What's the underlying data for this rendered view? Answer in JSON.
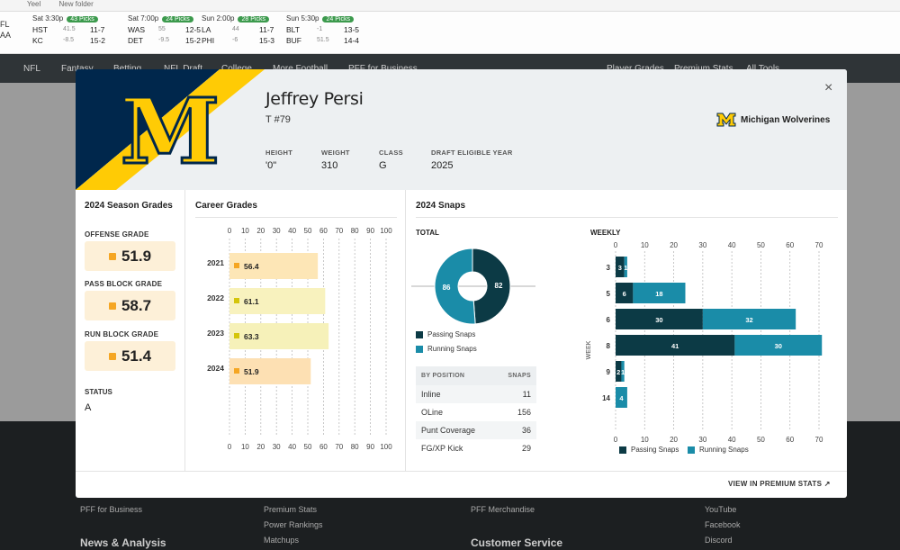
{
  "browser": {
    "tab1": "Yeel",
    "tab2": "New folder"
  },
  "scores": {
    "left_top": "FL",
    "left_bottom": "AA",
    "games": [
      {
        "time": "Sat 3:30p",
        "picks": "43 Picks",
        "r1": {
          "team": "HST",
          "spread": "41.5",
          "rec": "11-7"
        },
        "r2": {
          "team": "KC",
          "spread": "-8.5",
          "rec": "15-2"
        }
      },
      {
        "time": "Sat 7:00p",
        "picks": "24 Picks",
        "r1": {
          "team": "WAS",
          "spread": "55",
          "rec": "12-5"
        },
        "r2": {
          "team": "DET",
          "spread": "-9.5",
          "rec": "15-2"
        }
      },
      {
        "time": "Sun 2:00p",
        "picks": "28 Picks",
        "r1": {
          "team": "LA",
          "spread": "44",
          "rec": "11-7"
        },
        "r2": {
          "team": "PHI",
          "spread": "-6",
          "rec": "15-3"
        }
      },
      {
        "time": "Sun 5:30p",
        "picks": "24 Picks",
        "r1": {
          "team": "BLT",
          "spread": "-1",
          "rec": "13-5"
        },
        "r2": {
          "team": "BUF",
          "spread": "51.5",
          "rec": "14-4"
        }
      }
    ]
  },
  "nav": {
    "items": [
      "NFL",
      "Fantasy",
      "Betting",
      "NFL Draft",
      "College",
      "More Football",
      "PFF for Business"
    ],
    "right_items": [
      "Player Grades",
      "Premium Stats",
      "All Tools"
    ]
  },
  "footer": {
    "links_col1": [
      "PFF for Business"
    ],
    "links_col2": [
      "Premium Stats",
      "Power Rankings",
      "Matchups"
    ],
    "links_col3": [
      "PFF Merchandise"
    ],
    "links_col4": [
      "YouTube",
      "Facebook",
      "Discord"
    ],
    "head1": "News & Analysis",
    "head3": "Customer Service"
  },
  "player": {
    "logo_letter": "M",
    "name": "Jeffrey Persi",
    "position": "T #79",
    "height_label": "HEIGHT",
    "height": "'0\"",
    "weight_label": "WEIGHT",
    "weight": "310",
    "class_label": "CLASS",
    "class": "G",
    "draft_label": "DRAFT ELIGIBLE YEAR",
    "draft": "2025",
    "team": "Michigan Wolverines",
    "close": "×"
  },
  "season": {
    "title": "2024 Season Grades",
    "grades": [
      {
        "label": "OFFENSE GRADE",
        "value": "51.9"
      },
      {
        "label": "PASS BLOCK GRADE",
        "value": "58.7"
      },
      {
        "label": "RUN BLOCK GRADE",
        "value": "51.4"
      }
    ],
    "status_label": "STATUS",
    "status": "A"
  },
  "career": {
    "title": "Career Grades"
  },
  "snaps": {
    "title": "2024 Snaps",
    "total_label": "TOTAL",
    "weekly_label": "WEEKLY",
    "passing_label": "Passing Snaps",
    "running_label": "Running Snaps",
    "table_head": "BY POSITION",
    "table_head2": "SNAPS",
    "positions": [
      {
        "name": "Inline",
        "snaps": "11"
      },
      {
        "name": "OLine",
        "snaps": "156"
      },
      {
        "name": "Punt Coverage",
        "snaps": "36"
      },
      {
        "name": "FG/XP Kick",
        "snaps": "29"
      }
    ],
    "view_link": "VIEW IN PREMIUM STATS ↗"
  },
  "colors": {
    "navy": "#00274c",
    "maize": "#ffcb05",
    "passing": "#0c3a45",
    "running": "#1a8ca8"
  },
  "chart_data": [
    {
      "type": "bar",
      "title": "Career Grades",
      "categories": [
        "2021",
        "2022",
        "2023",
        "2024"
      ],
      "values": [
        56.4,
        61.1,
        63.3,
        51.9
      ],
      "xlim": [
        0,
        100
      ],
      "ticks": [
        0,
        10,
        20,
        30,
        40,
        50,
        60,
        70,
        80,
        90,
        100
      ]
    },
    {
      "type": "pie",
      "title": "TOTAL",
      "series": [
        {
          "name": "Passing Snaps",
          "value": 82
        },
        {
          "name": "Running Snaps",
          "value": 86
        }
      ]
    },
    {
      "type": "bar",
      "title": "WEEKLY",
      "ylabel": "WEEK",
      "categories": [
        "3",
        "5",
        "6",
        "8",
        "9",
        "14"
      ],
      "series": [
        {
          "name": "Passing Snaps",
          "values": [
            3,
            6,
            30,
            41,
            2,
            0
          ]
        },
        {
          "name": "Running Snaps",
          "values": [
            1,
            18,
            32,
            30,
            1,
            4
          ]
        }
      ],
      "xlim": [
        0,
        70
      ],
      "ticks": [
        0,
        10,
        20,
        30,
        40,
        50,
        60,
        70
      ]
    }
  ]
}
